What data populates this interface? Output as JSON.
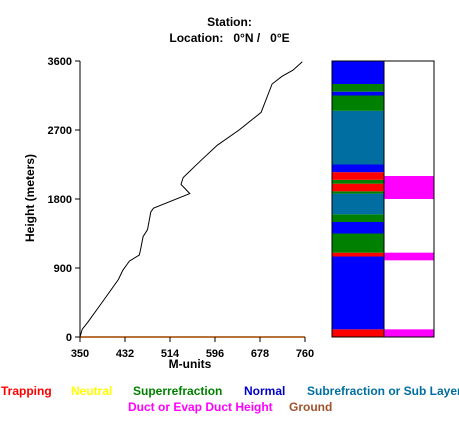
{
  "header": {
    "station_line": "Station:",
    "location_line": "Location:   0°N /   0°E"
  },
  "chart_data": {
    "type": "line",
    "xlabel": "M-units",
    "ylabel": "Height (meters)",
    "xlim": [
      350,
      760
    ],
    "ylim": [
      0,
      3600
    ],
    "x_ticks": [
      "350",
      "432",
      "514",
      "596",
      "678",
      "760"
    ],
    "y_ticks": [
      "0",
      "900",
      "1800",
      "2700",
      "3600"
    ],
    "grid": false,
    "series": [
      {
        "color": "#000000",
        "points": [
          [
            350,
            0
          ],
          [
            354,
            100
          ],
          [
            365,
            200
          ],
          [
            390,
            450
          ],
          [
            420,
            750
          ],
          [
            428,
            870
          ],
          [
            440,
            990
          ],
          [
            458,
            1070
          ],
          [
            460,
            1130
          ],
          [
            465,
            1310
          ],
          [
            473,
            1400
          ],
          [
            479,
            1630
          ],
          [
            484,
            1680
          ],
          [
            550,
            1870
          ],
          [
            534,
            1990
          ],
          [
            538,
            2080
          ],
          [
            570,
            2300
          ],
          [
            600,
            2500
          ],
          [
            640,
            2700
          ],
          [
            680,
            2930
          ],
          [
            700,
            3300
          ],
          [
            718,
            3400
          ],
          [
            738,
            3480
          ],
          [
            755,
            3590
          ]
        ]
      }
    ],
    "ground_line_color": "#b8733a"
  },
  "side_panel": {
    "colors": {
      "Trapping": "#ff0000",
      "Neutral": "#ffff00",
      "Superrefraction": "#008000",
      "Normal": "#0000ff",
      "Subrefraction or Sub Layer": "#006ea0",
      "Duct or Evap Duct Height": "#ff00ff",
      "Ground": "#a0522d"
    },
    "layers": [
      {
        "type": "Trapping",
        "from": 0,
        "to": 100
      },
      {
        "type": "Normal",
        "from": 100,
        "to": 1050
      },
      {
        "type": "Trapping",
        "from": 1050,
        "to": 1100
      },
      {
        "type": "Superrefraction",
        "from": 1100,
        "to": 1350
      },
      {
        "type": "Normal",
        "from": 1350,
        "to": 1500
      },
      {
        "type": "Superrefraction",
        "from": 1500,
        "to": 1600
      },
      {
        "type": "Subrefraction or Sub Layer",
        "from": 1600,
        "to": 1870
      },
      {
        "type": "Superrefraction",
        "from": 1870,
        "to": 1900
      },
      {
        "type": "Trapping",
        "from": 1900,
        "to": 2000
      },
      {
        "type": "Superrefraction",
        "from": 2000,
        "to": 2050
      },
      {
        "type": "Trapping",
        "from": 2050,
        "to": 2150
      },
      {
        "type": "Normal",
        "from": 2150,
        "to": 2250
      },
      {
        "type": "Subrefraction or Sub Layer",
        "from": 2250,
        "to": 2950
      },
      {
        "type": "Superrefraction",
        "from": 2950,
        "to": 3150
      },
      {
        "type": "Normal",
        "from": 3150,
        "to": 3200
      },
      {
        "type": "Superrefraction",
        "from": 3200,
        "to": 3300
      },
      {
        "type": "Normal",
        "from": 3300,
        "to": 3600
      }
    ],
    "ducts": [
      {
        "from": 0,
        "to": 100
      },
      {
        "from": 1000,
        "to": 1100
      },
      {
        "from": 1800,
        "to": 2100
      }
    ]
  },
  "legend": [
    {
      "label": "Trapping",
      "color": "#ff0000"
    },
    {
      "label": "Neutral",
      "color": "#ffff00"
    },
    {
      "label": "Superrefraction",
      "color": "#008000"
    },
    {
      "label": "Normal",
      "color": "#0000cc"
    },
    {
      "label": "Subrefraction or Sub Layer",
      "color": "#006ea0"
    },
    {
      "label": "Duct or Evap Duct Height",
      "color": "#ff00ff"
    },
    {
      "label": "Ground",
      "color": "#a0522d"
    }
  ]
}
